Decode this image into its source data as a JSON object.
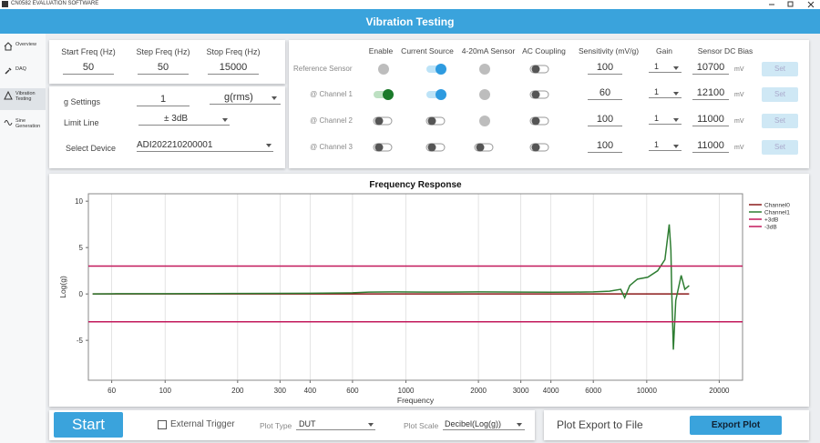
{
  "app": {
    "title": "CN0582 EVALUATION SOFTWARE",
    "header": "Vibration Testing"
  },
  "sidebar": {
    "items": [
      "Overview",
      "DAQ",
      "Vibration Testing",
      "Sine Generation"
    ],
    "selected": 2
  },
  "frequency": [
    {
      "label": "Start Freq (Hz)",
      "value": 50
    },
    {
      "label": "Step Freq (Hz)",
      "value": 50
    },
    {
      "label": "Stop Freq (Hz)",
      "value": 15000
    }
  ],
  "settings": {
    "g_settings": {
      "label": "g Settings",
      "value": 1,
      "unit": "g(rms)"
    },
    "limit_line": {
      "label": "Limit Line",
      "value": "± 3dB"
    },
    "device": {
      "label": "Select Device",
      "value": "ADI202210200001"
    }
  },
  "channels": {
    "columns": [
      "Enable",
      "Current Source",
      "4-20mA Sensor",
      "AC Coupling",
      "Sensitivity (mV/g)",
      "Gain",
      "Sensor DC Bias"
    ],
    "rows": [
      {
        "label": "Reference Sensor",
        "switches": [
          "disabled",
          "on",
          "disabled",
          "off"
        ],
        "sensitivity": 100,
        "gain": 1,
        "dc_bias": 10700,
        "unit": "mV",
        "button": "Set"
      },
      {
        "label": "@ Channel 1",
        "switches": [
          "on",
          "on",
          "disabled",
          "off"
        ],
        "sensitivity": 60,
        "gain": 1,
        "dc_bias": 12100,
        "unit": "mV",
        "button": "Set"
      },
      {
        "label": "@ Channel 2",
        "switches": [
          "off",
          "off",
          "disabled",
          "off"
        ],
        "sensitivity": 100,
        "gain": 1,
        "dc_bias": 11000,
        "unit": "mV",
        "button": "Set"
      },
      {
        "label": "@ Channel 3",
        "switches": [
          "off",
          "off",
          "off",
          "off"
        ],
        "sensitivity": 100,
        "gain": 1,
        "dc_bias": 11000,
        "unit": "mV",
        "button": "Set"
      }
    ]
  },
  "chart_data": {
    "type": "line",
    "title": "Frequency Response",
    "x_label": "Frequency",
    "y_label": "Log(g)",
    "log_x": true,
    "grid": "x",
    "legend": "right",
    "xlim": [
      48,
      25000
    ],
    "ylim": [
      -9.3,
      10.8
    ],
    "xticks": [
      60,
      100,
      200,
      300,
      400,
      600,
      1000,
      2000,
      3000,
      4000,
      6000,
      10000,
      20000
    ],
    "yticks": [
      -5,
      0,
      5,
      10
    ],
    "series": [
      {
        "name": "Channel0",
        "color": "#8b1a1a",
        "x": [
          50,
          15000
        ],
        "values": [
          0,
          0
        ]
      },
      {
        "name": "Channel1",
        "color": "#2e7d32",
        "x": [
          50,
          60,
          80,
          100,
          150,
          200,
          300,
          400,
          500,
          600,
          700,
          900,
          1200,
          1500,
          2000,
          3000,
          4000,
          5000,
          6000,
          7000,
          7800,
          8100,
          8500,
          9150,
          10100,
          11100,
          11900,
          12400,
          12600,
          12700,
          12900,
          13200,
          13900,
          14400,
          15000
        ],
        "values": [
          0,
          0.02,
          0.03,
          0.03,
          0.04,
          0.05,
          0.06,
          0.08,
          0.1,
          0.12,
          0.2,
          0.22,
          0.2,
          0.2,
          0.22,
          0.2,
          0.18,
          0.2,
          0.22,
          0.3,
          0.5,
          -0.4,
          0.9,
          1.6,
          1.8,
          2.5,
          3.7,
          7.5,
          4.7,
          0.3,
          -6,
          -0.7,
          2,
          0.5,
          0.9
        ]
      },
      {
        "name": "+3dB",
        "color": "#c2185b",
        "x": [
          48,
          25000
        ],
        "values": [
          3,
          3
        ]
      },
      {
        "name": "-3dB",
        "color": "#c2185b",
        "x": [
          48,
          25000
        ],
        "values": [
          -3,
          -3
        ]
      }
    ]
  },
  "controls": {
    "start": "Start",
    "external_trigger": "External Trigger",
    "plot_type": {
      "label": "Plot Type",
      "value": "DUT"
    },
    "plot_scale": {
      "label": "Plot Scale",
      "value": "Decibel(Log(g))"
    },
    "export_label": "Plot Export to File",
    "export_button": "Export Plot"
  }
}
